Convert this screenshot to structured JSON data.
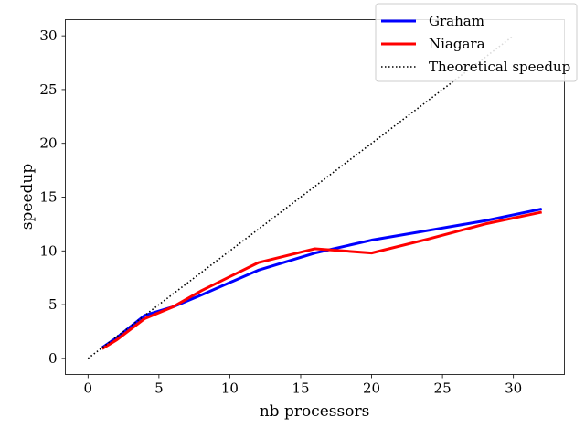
{
  "chart_data": {
    "type": "line",
    "title": "",
    "xlabel": "nb processors",
    "ylabel": "speedup",
    "xlim": [
      -1.6,
      33.6
    ],
    "ylim": [
      -1.5,
      31.5
    ],
    "xticks": [
      0,
      5,
      10,
      15,
      20,
      25,
      30
    ],
    "yticks": [
      0,
      5,
      10,
      15,
      20,
      25,
      30
    ],
    "grid": false,
    "legend_position": "top-right",
    "series": [
      {
        "name": "Graham",
        "color": "#0000ff",
        "style": "solid",
        "x": [
          1,
          2,
          4,
          6,
          8,
          12,
          16,
          20,
          24,
          28,
          32
        ],
        "y": [
          1.0,
          1.9,
          4.0,
          4.8,
          5.9,
          8.2,
          9.8,
          11.0,
          11.9,
          12.8,
          13.9
        ]
      },
      {
        "name": "Niagara",
        "color": "#ff0000",
        "style": "solid",
        "x": [
          1,
          2,
          4,
          6,
          8,
          12,
          16,
          20,
          24,
          28,
          32
        ],
        "y": [
          0.9,
          1.7,
          3.7,
          4.8,
          6.3,
          8.9,
          10.2,
          9.8,
          11.1,
          12.5,
          13.6
        ]
      },
      {
        "name": "Theoretical speedup",
        "color": "#000000",
        "style": "dotted",
        "x": [
          0,
          30
        ],
        "y": [
          0,
          30
        ]
      }
    ]
  }
}
